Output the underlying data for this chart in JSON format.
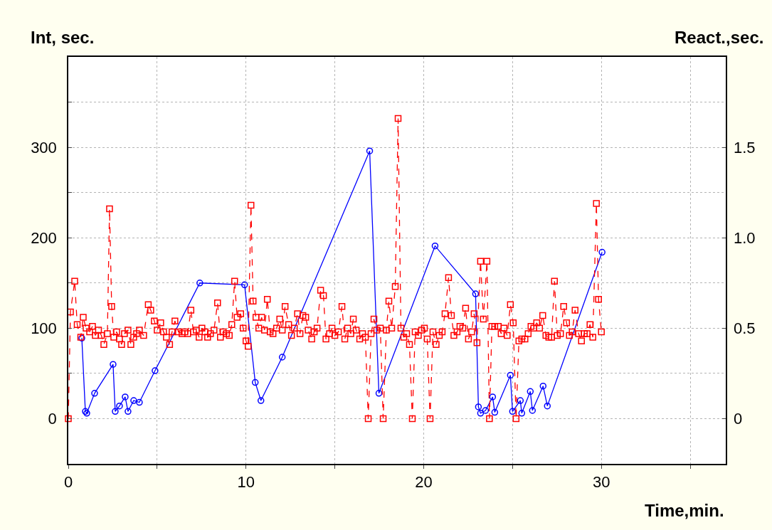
{
  "chart_data": {
    "type": "line",
    "xlabel": "Time,min.",
    "ylabel": "Int, sec.",
    "y2label": "React.,sec.",
    "xlim": [
      0,
      37
    ],
    "xticks": [
      0,
      {
        "value": 5,
        "label": null
      },
      10,
      {
        "value": 15,
        "label": null
      },
      20,
      {
        "value": 25,
        "label": null
      },
      30,
      {
        "value": 35,
        "label": null
      }
    ],
    "ylim": [
      -50,
      400
    ],
    "yticks": [
      0,
      {
        "value": 50,
        "label": null
      },
      100,
      {
        "value": 150,
        "label": null
      },
      200,
      {
        "value": 250,
        "label": null
      },
      300,
      {
        "value": 350,
        "label": null
      }
    ],
    "y2lim": [
      -0.25,
      2.0
    ],
    "y2ticks": [
      0,
      0.5,
      {
        "value": 1,
        "label": "1.0"
      },
      1.5
    ],
    "grid": true,
    "series": [
      {
        "color": "#0000ff",
        "marker": "circle",
        "line_style": "solid",
        "x": [
          0.76,
          0.96,
          1.04,
          1.48,
          2.52,
          2.64,
          2.88,
          3.2,
          3.36,
          3.68,
          4.0,
          4.88,
          7.4,
          9.92,
          10.52,
          10.84,
          12.04,
          16.96,
          17.48,
          20.64,
          22.92,
          23.08,
          23.2,
          23.48,
          23.88,
          24.0,
          24.88,
          25.0,
          25.44,
          25.52,
          26.0,
          26.12,
          26.72,
          26.96,
          30.04
        ],
        "values": [
          89,
          8,
          6,
          28,
          60,
          8,
          14,
          24,
          8,
          20,
          18,
          53,
          150,
          148,
          40,
          20,
          68,
          296,
          28,
          191,
          138,
          13,
          6,
          9,
          24,
          7,
          48,
          8,
          20,
          6,
          30,
          9,
          36,
          14,
          184
        ]
      },
      {
        "color": "#ff0000",
        "marker": "square",
        "line_style": "dashed",
        "axis": "y2",
        "x": [
          0,
          0.12,
          0.36,
          0.5,
          0.7,
          0.84,
          1.0,
          1.2,
          1.36,
          1.52,
          1.7,
          1.86,
          2.0,
          2.2,
          2.32,
          2.44,
          2.56,
          2.72,
          2.88,
          3.0,
          3.16,
          3.36,
          3.52,
          3.68,
          3.84,
          4.0,
          4.24,
          4.5,
          4.64,
          4.84,
          5.0,
          5.2,
          5.36,
          5.52,
          5.7,
          5.84,
          6.0,
          6.2,
          6.4,
          6.56,
          6.72,
          6.9,
          7.04,
          7.2,
          7.36,
          7.52,
          7.7,
          7.84,
          8.0,
          8.2,
          8.4,
          8.56,
          8.72,
          8.9,
          9.06,
          9.2,
          9.36,
          9.5,
          9.7,
          9.84,
          10.0,
          10.12,
          10.28,
          10.4,
          10.56,
          10.72,
          10.88,
          11.04,
          11.2,
          11.36,
          11.52,
          11.72,
          11.9,
          12.04,
          12.2,
          12.4,
          12.56,
          12.72,
          12.9,
          13.04,
          13.2,
          13.36,
          13.5,
          13.7,
          13.84,
          14.0,
          14.2,
          14.36,
          14.5,
          14.7,
          14.84,
          15.0,
          15.2,
          15.4,
          15.56,
          15.72,
          15.9,
          16.04,
          16.2,
          16.4,
          16.56,
          16.72,
          16.88,
          17.04,
          17.2,
          17.36,
          17.56,
          17.72,
          17.9,
          18.04,
          18.2,
          18.4,
          18.56,
          18.72,
          18.88,
          19.04,
          19.2,
          19.36,
          19.52,
          19.7,
          19.88,
          20.04,
          20.2,
          20.36,
          20.52,
          20.7,
          20.88,
          21.04,
          21.2,
          21.4,
          21.56,
          21.7,
          21.88,
          22.04,
          22.2,
          22.36,
          22.52,
          22.7,
          22.84,
          23.0,
          23.2,
          23.36,
          23.56,
          23.7,
          23.84,
          24.0,
          24.2,
          24.36,
          24.52,
          24.7,
          24.88,
          25.04,
          25.2,
          25.36,
          25.52,
          25.7,
          25.88,
          26.04,
          26.2,
          26.36,
          26.52,
          26.7,
          26.88,
          27.04,
          27.2,
          27.36,
          27.52,
          27.7,
          27.88,
          28.04,
          28.2,
          28.36,
          28.52,
          28.72,
          28.88,
          29.04,
          29.2,
          29.36,
          29.52,
          29.72,
          29.84,
          30.0
        ],
        "values": [
          0,
          0.59,
          0.76,
          0.52,
          0.45,
          0.56,
          0.5,
          0.48,
          0.51,
          0.46,
          0.49,
          0.46,
          0.41,
          0.47,
          1.16,
          0.62,
          0.45,
          0.48,
          0.44,
          0.41,
          0.47,
          0.49,
          0.41,
          0.45,
          0.47,
          0.49,
          0.46,
          0.63,
          0.6,
          0.54,
          0.49,
          0.53,
          0.48,
          0.45,
          0.41,
          0.48,
          0.54,
          0.48,
          0.47,
          0.48,
          0.47,
          0.6,
          0.48,
          0.49,
          0.45,
          0.5,
          0.48,
          0.45,
          0.47,
          0.49,
          0.64,
          0.45,
          0.48,
          0.47,
          0.46,
          0.52,
          0.76,
          0.56,
          0.58,
          0.5,
          0.43,
          0.4,
          1.18,
          0.65,
          0.56,
          0.5,
          0.56,
          0.49,
          0.66,
          0.48,
          0.47,
          0.5,
          0.55,
          0.49,
          0.62,
          0.52,
          0.46,
          0.5,
          0.58,
          0.47,
          0.57,
          0.56,
          0.49,
          0.44,
          0.48,
          0.5,
          0.71,
          0.68,
          0.44,
          0.47,
          0.5,
          0.46,
          0.48,
          0.62,
          0.44,
          0.5,
          0.47,
          0.55,
          0.49,
          0.44,
          0.47,
          0.45,
          0,
          0.47,
          0.55,
          0.49,
          0.5,
          0,
          0.49,
          0.65,
          0.5,
          0.73,
          1.66,
          0.5,
          0.45,
          0.47,
          0.41,
          0,
          0.48,
          0.46,
          0.49,
          0.5,
          0.44,
          0,
          0.48,
          0.41,
          0.46,
          0.48,
          0.58,
          0.78,
          0.57,
          0.46,
          0.48,
          0.51,
          0.5,
          0.61,
          0.44,
          0.48,
          0.58,
          0.42,
          0.87,
          0.55,
          0.87,
          0,
          0.51,
          0.51,
          0.51,
          0.47,
          0.5,
          0.46,
          0.63,
          0.53,
          0,
          0.43,
          0.44,
          0.44,
          0.47,
          0.51,
          0.5,
          0.53,
          0.5,
          0.57,
          0.46,
          0.45,
          0.45,
          0.76,
          0.46,
          0.47,
          0.62,
          0.53,
          0.46,
          0.48,
          0.6,
          0.47,
          0.43,
          0.47,
          0.47,
          0.52,
          0.45,
          1.19,
          0.66,
          0.48
        ]
      }
    ]
  }
}
